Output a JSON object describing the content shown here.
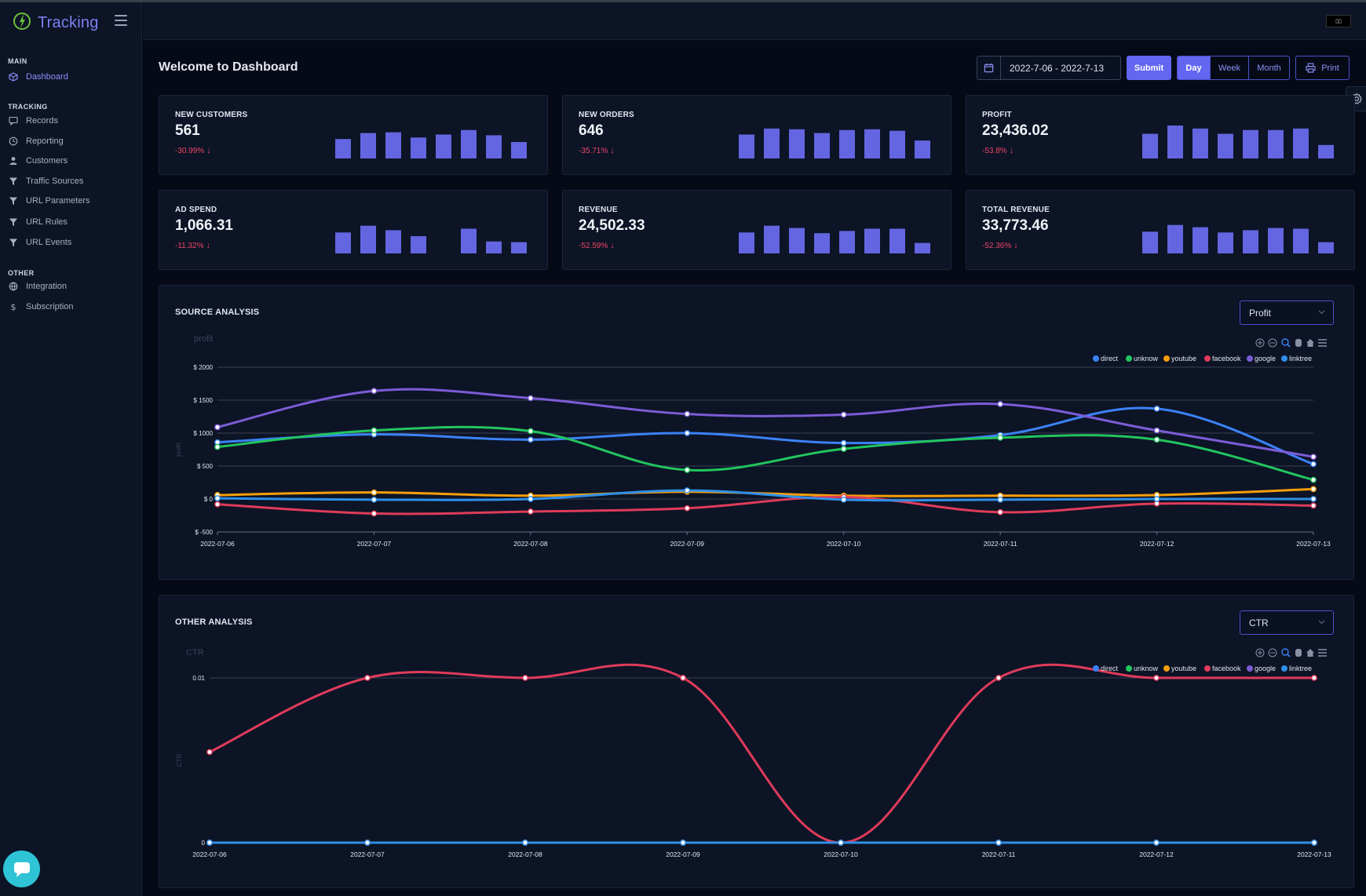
{
  "app": {
    "title": "Tracking"
  },
  "sidebar": {
    "sections": [
      {
        "label": "MAIN",
        "items": [
          {
            "label": "Dashboard",
            "icon": "cube-icon",
            "active": true
          }
        ]
      },
      {
        "label": "TRACKING",
        "items": [
          {
            "label": "Records",
            "icon": "chat-icon"
          },
          {
            "label": "Reporting",
            "icon": "clock-icon"
          },
          {
            "label": "Customers",
            "icon": "user-icon"
          },
          {
            "label": "Traffic Sources",
            "icon": "filter-icon"
          },
          {
            "label": "URL Parameters",
            "icon": "filter-icon"
          },
          {
            "label": "URL Rules",
            "icon": "filter-icon"
          },
          {
            "label": "URL Events",
            "icon": "filter-icon"
          }
        ]
      },
      {
        "label": "OTHER",
        "items": [
          {
            "label": "Integration",
            "icon": "globe-icon"
          },
          {
            "label": "Subscription",
            "icon": "dollar-icon"
          }
        ]
      }
    ]
  },
  "page": {
    "title": "Welcome to Dashboard"
  },
  "toolbar": {
    "date_range": "2022-7-06 - 2022-7-13",
    "submit_label": "Submit",
    "periods": [
      "Day",
      "Week",
      "Month"
    ],
    "active_period": "Day",
    "print_label": "Print"
  },
  "colors": {
    "accent": "#6366f1",
    "negative": "#ef4664",
    "bar": "#6366e0"
  },
  "stats": [
    {
      "label": "NEW CUSTOMERS",
      "value": "561",
      "change": "-30.99%",
      "bars": [
        26,
        34,
        35,
        28,
        32,
        38,
        31,
        22
      ]
    },
    {
      "label": "NEW ORDERS",
      "value": "646",
      "change": "-35.71%",
      "bars": [
        32,
        40,
        39,
        34,
        38,
        39,
        37,
        24
      ]
    },
    {
      "label": "PROFIT",
      "value": "23,436.02",
      "change": "-53.8%",
      "bars": [
        33,
        44,
        40,
        33,
        38,
        38,
        40,
        18
      ]
    },
    {
      "label": "AD SPEND",
      "value": "1,066.31",
      "change": "-11.32%",
      "bars": [
        28,
        37,
        31,
        23,
        0,
        33,
        16,
        15
      ]
    },
    {
      "label": "REVENUE",
      "value": "24,502.33",
      "change": "-52.59%",
      "bars": [
        28,
        37,
        34,
        27,
        30,
        33,
        33,
        14
      ]
    },
    {
      "label": "TOTAL REVENUE",
      "value": "33,773.46",
      "change": "-52.36%",
      "bars": [
        29,
        38,
        35,
        28,
        31,
        34,
        33,
        15
      ]
    }
  ],
  "source_analysis": {
    "title": "SOURCE ANALYSIS",
    "select_value": "Profit"
  },
  "other_analysis": {
    "title": "OTHER ANALYSIS",
    "select_value": "CTR"
  },
  "chart_data": [
    {
      "type": "line",
      "title": "profit",
      "ylabel": "profit",
      "x": [
        "2022-07-06",
        "2022-07-07",
        "2022-07-08",
        "2022-07-09",
        "2022-07-10",
        "2022-07-11",
        "2022-07-12",
        "2022-07-13"
      ],
      "ylim": [
        -500,
        2000
      ],
      "yticks": [
        -500,
        0,
        500,
        1000,
        1500,
        2000
      ],
      "ytick_labels": [
        "$ -500",
        "$ 0",
        "$ 500",
        "$ 1000",
        "$ 1500",
        "$ 2000"
      ],
      "legend_position": "top-right",
      "series": [
        {
          "name": "direct",
          "color": "#3b82f6",
          "values": [
            860,
            980,
            900,
            1000,
            850,
            970,
            1370,
            530
          ]
        },
        {
          "name": "unknow",
          "color": "#22c55e",
          "values": [
            790,
            1040,
            1030,
            440,
            760,
            930,
            900,
            290
          ]
        },
        {
          "name": "youtube",
          "color": "#f59e0b",
          "values": [
            60,
            100,
            50,
            110,
            50,
            50,
            60,
            150
          ]
        },
        {
          "name": "facebook",
          "color": "#e03b5a",
          "values": [
            -80,
            -220,
            -190,
            -140,
            30,
            -200,
            -70,
            -100
          ]
        },
        {
          "name": "google",
          "color": "#7c5cd6",
          "values": [
            1090,
            1640,
            1530,
            1290,
            1280,
            1440,
            1040,
            640
          ]
        },
        {
          "name": "linktree",
          "color": "#2f8fe8",
          "values": [
            10,
            -10,
            0,
            130,
            -10,
            -10,
            0,
            0
          ]
        }
      ]
    },
    {
      "type": "line",
      "title": "CTR",
      "ylabel": "CTR",
      "x": [
        "2022-07-06",
        "2022-07-07",
        "2022-07-08",
        "2022-07-09",
        "2022-07-10",
        "2022-07-11",
        "2022-07-12",
        "2022-07-13"
      ],
      "ylim": [
        0,
        0.01
      ],
      "yticks": [
        0,
        0.01
      ],
      "ytick_labels": [
        "0",
        "0.01"
      ],
      "legend_position": "top-right",
      "series": [
        {
          "name": "direct",
          "color": "#3b82f6",
          "values": [
            0,
            0,
            0,
            0,
            0,
            0,
            0,
            0
          ]
        },
        {
          "name": "unknow",
          "color": "#22c55e",
          "values": [
            0,
            0,
            0,
            0,
            0,
            0,
            0,
            0
          ]
        },
        {
          "name": "youtube",
          "color": "#f59e0b",
          "values": [
            0,
            0,
            0,
            0,
            0,
            0,
            0,
            0
          ]
        },
        {
          "name": "facebook",
          "color": "#e03b5a",
          "values": [
            0.0055,
            0.01,
            0.01,
            0.01,
            0,
            0.01,
            0.01,
            0.01
          ]
        },
        {
          "name": "google",
          "color": "#7c5cd6",
          "values": [
            0,
            0,
            0,
            0,
            0,
            0,
            0,
            0
          ]
        },
        {
          "name": "linktree",
          "color": "#2f8fe8",
          "values": [
            0,
            0,
            0,
            0,
            0,
            0,
            0,
            0
          ]
        }
      ]
    }
  ]
}
